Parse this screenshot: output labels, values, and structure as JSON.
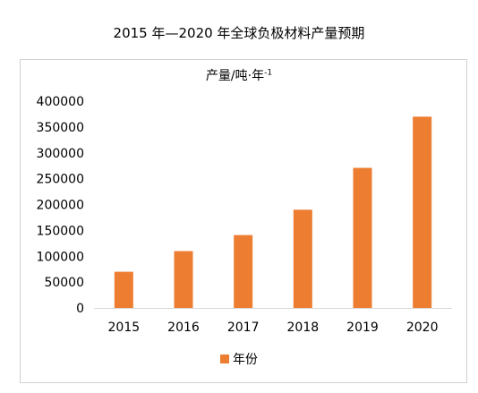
{
  "title": "2015 年—2020 年全球负极材料产量预期",
  "chart_data": {
    "type": "bar",
    "title": "产量/吨·年",
    "title_superscript": "-1",
    "categories": [
      "2015",
      "2016",
      "2017",
      "2018",
      "2019",
      "2020"
    ],
    "series": [
      {
        "name": "年份",
        "color": "#ed7d31",
        "values": [
          70000,
          110000,
          141000,
          190000,
          271000,
          370000
        ]
      }
    ],
    "ylim": [
      0,
      400000
    ],
    "yticks": [
      0,
      50000,
      100000,
      150000,
      200000,
      250000,
      300000,
      350000,
      400000
    ],
    "grid": false,
    "legend_position": "bottom"
  }
}
